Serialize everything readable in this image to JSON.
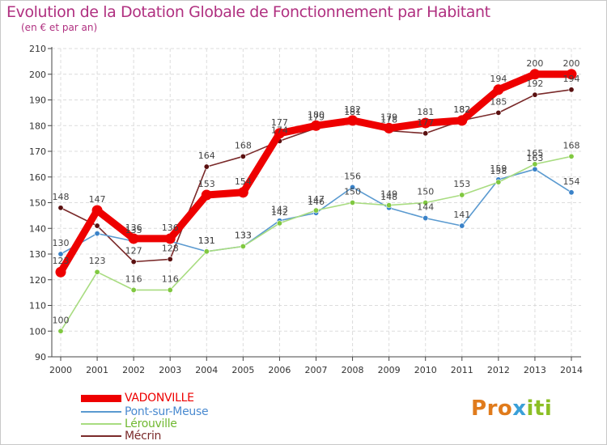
{
  "header": {
    "title": "Evolution de la Dotation Globale de Fonctionnement par Habitant",
    "subtitle": "(en € et par an)"
  },
  "brand": {
    "name": "Proxiti",
    "letters": [
      {
        "char": "P",
        "color": "#e07b1c"
      },
      {
        "char": "r",
        "color": "#e07b1c"
      },
      {
        "char": "o",
        "color": "#e07b1c"
      },
      {
        "char": "x",
        "color": "#3aa0d8"
      },
      {
        "char": "i",
        "color": "#8cbf26"
      },
      {
        "char": "t",
        "color": "#8cbf26"
      },
      {
        "char": "i",
        "color": "#8cbf26"
      }
    ]
  },
  "chart_data": {
    "type": "line",
    "title": "Evolution de la Dotation Globale de Fonctionnement par Habitant",
    "subtitle": "(en € et par an)",
    "xlabel": "",
    "ylabel": "",
    "ylim": [
      90,
      210
    ],
    "ytick_step": 10,
    "grid": true,
    "legend_position": "bottom-left",
    "categories": [
      "2000",
      "2001",
      "2002",
      "2003",
      "2004",
      "2005",
      "2006",
      "2007",
      "2008",
      "2009",
      "2010",
      "2011",
      "2012",
      "2013",
      "2014"
    ],
    "series": [
      {
        "name": "Mécrin",
        "color": "#7a2a2a",
        "marker": "#5a1010",
        "width": "thin",
        "values": [
          148,
          141,
          127,
          128,
          164,
          168,
          174,
          179,
          181,
          178,
          177,
          182,
          185,
          192,
          194
        ],
        "labels": [
          "148",
          "",
          "127",
          "128",
          "164",
          "168",
          "174",
          "179",
          "181",
          "178",
          "177",
          "182",
          "185",
          "192",
          "194"
        ]
      },
      {
        "name": "Pont-sur-Meuse",
        "color": "#5a9ad0",
        "marker": "#3a82c8",
        "width": "thin",
        "values": [
          130,
          138,
          135,
          135,
          131,
          133,
          143,
          146,
          156,
          148,
          144,
          141,
          159,
          163,
          154
        ],
        "labels": [
          "130",
          "",
          "135",
          "",
          "131",
          "133",
          "143",
          "146",
          "156",
          "148",
          "144",
          "141",
          "159",
          "163",
          "154"
        ]
      },
      {
        "name": "Lérouville",
        "color": "#a8dc80",
        "marker": "#80c840",
        "width": "thin",
        "values": [
          100,
          123,
          116,
          116,
          131,
          133,
          142,
          147,
          150,
          149,
          150,
          153,
          158,
          165,
          168
        ],
        "labels": [
          "100",
          "123",
          "116",
          "116",
          "131",
          "133",
          "142",
          "147",
          "150",
          "149",
          "150",
          "153",
          "158",
          "165",
          "168"
        ]
      },
      {
        "name": "VADONVILLE",
        "color": "#ee0000",
        "marker": "#ee0000",
        "width": "thick",
        "values": [
          123,
          147,
          136,
          136,
          153,
          154,
          177,
          180,
          182,
          179,
          181,
          182,
          194,
          200,
          200
        ],
        "labels": [
          "123",
          "147",
          "136",
          "136",
          "153",
          "154",
          "177",
          "180",
          "182",
          "179",
          "181",
          "182",
          "194",
          "200",
          "200"
        ]
      }
    ],
    "legend": [
      {
        "name": "VADONVILLE",
        "color": "#ee0000",
        "text_color": "#ee0000",
        "width": "thick"
      },
      {
        "name": "Pont-sur-Meuse",
        "color": "#5a9ad0",
        "text_color": "#4a8ad0",
        "width": "thin"
      },
      {
        "name": "Lérouville",
        "color": "#a8dc80",
        "text_color": "#70b830",
        "width": "thin"
      },
      {
        "name": "Mécrin",
        "color": "#7a2a2a",
        "text_color": "#7a2a2a",
        "width": "thin"
      }
    ]
  }
}
